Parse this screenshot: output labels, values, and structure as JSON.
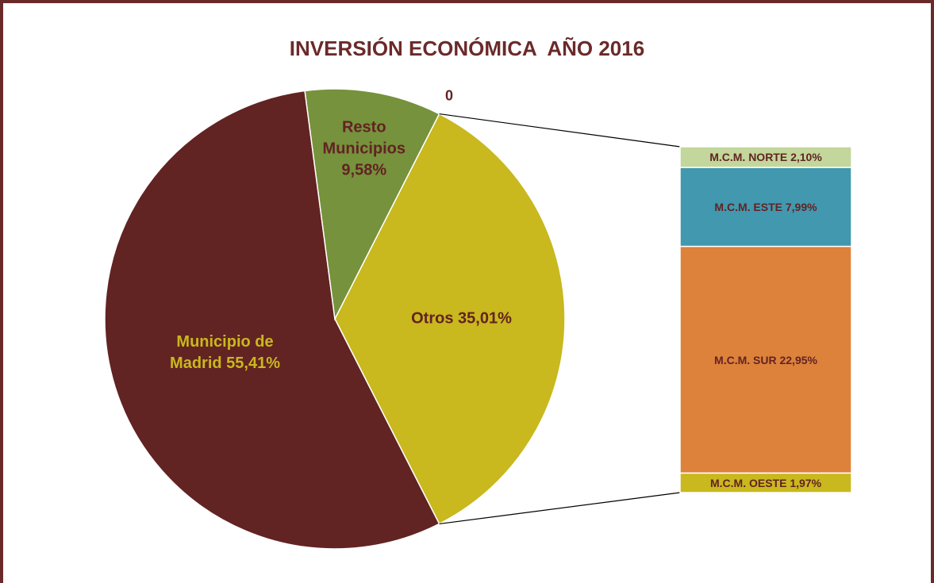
{
  "chart_data": {
    "type": "pie-of-bar",
    "title": "INVERSIÓN ECONÓMICA  AÑO 2016",
    "categories": [
      "Otros",
      "Municipio de Madrid",
      "Resto Municipios"
    ],
    "values": [
      35.01,
      55.41,
      9.58
    ],
    "value_labels": [
      "35,01%",
      "55,41%",
      "9,58%"
    ],
    "colors": [
      "#c9b81e",
      "#622323",
      "#76923c"
    ],
    "label_colors": [
      "#622323",
      "#c9b81e",
      "#622323"
    ],
    "annotation": "0",
    "bar": {
      "categories": [
        "M.C.M. NORTE",
        "M.C.M. ESTE",
        "M.C.M. SUR",
        "M.C.M. OESTE"
      ],
      "values": [
        2.1,
        7.99,
        22.95,
        1.97
      ],
      "value_labels": [
        "2,10%",
        "7,99%",
        "22,95%",
        "1,97%"
      ],
      "colors": [
        "#c3d69b",
        "#4198af",
        "#dd823b",
        "#c9b81e"
      ],
      "label_color": "#622323"
    }
  }
}
